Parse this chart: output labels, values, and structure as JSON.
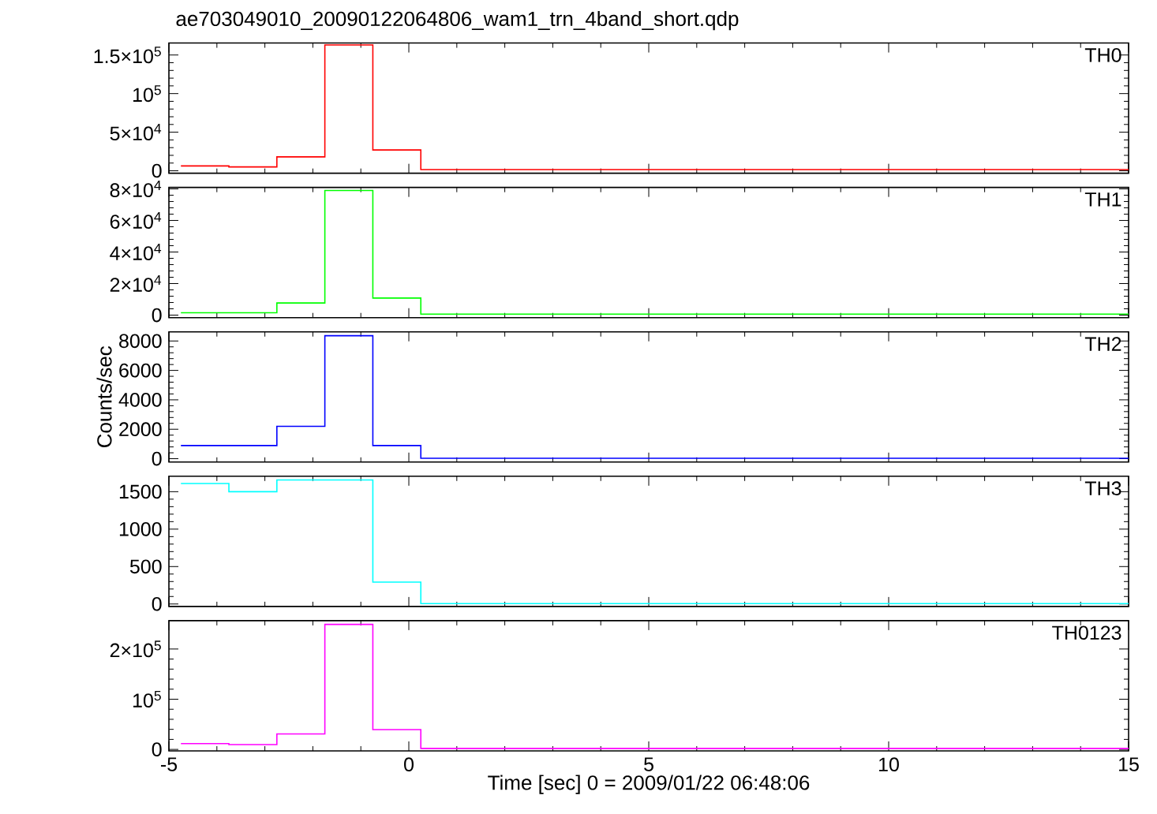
{
  "chart_data": [
    {
      "type": "histogram",
      "title": "ae703049010_20090122064806_wam1_trn_4band_short.qdp",
      "bins": [
        -4.75,
        -3.75,
        -2.75,
        -1.75,
        -0.75,
        0.25,
        1.25,
        2.25,
        3.25,
        4.25,
        5.25,
        6.25,
        7.25,
        8.25,
        9.25,
        10.25,
        11.25,
        12.25,
        13.25,
        14.25,
        15
      ],
      "xlim": [
        -5,
        15
      ],
      "xticks": [
        -5,
        0,
        5,
        10,
        15
      ],
      "ylim": [
        -3200,
        165500
      ],
      "yticks": [
        0,
        {
          "value": 50000,
          "label": "5×10$^{4}$"
        },
        {
          "value": 100000,
          "label": "10$^{5}$"
        },
        {
          "value": 150000,
          "label": "1.5×10$^{5}$"
        }
      ],
      "tick_labels": "y",
      "series": [
        {
          "name": "TH0",
          "color": "#ff0000",
          "values": [
            6300,
            5000,
            18000,
            163000,
            27000,
            1500,
            1500,
            1500,
            1500,
            1500,
            1500,
            1500,
            1500,
            1500,
            1500,
            1500,
            1500,
            1500,
            1500,
            1500
          ]
        }
      ]
    },
    {
      "type": "histogram",
      "bins": [
        -4.75,
        -3.75,
        -2.75,
        -1.75,
        -0.75,
        0.25,
        1.25,
        2.25,
        3.25,
        4.25,
        5.25,
        6.25,
        7.25,
        8.25,
        9.25,
        10.25,
        11.25,
        12.25,
        13.25,
        14.25,
        15
      ],
      "xlim": [
        -5,
        15
      ],
      "xticks": [
        -5,
        0,
        5,
        10,
        15
      ],
      "ylim": [
        -1600,
        80900
      ],
      "yticks": [
        0,
        {
          "value": 20000,
          "label": "2×10$^{4}$"
        },
        {
          "value": 40000,
          "label": "4×10$^{4}$"
        },
        {
          "value": 60000,
          "label": "6×10$^{4}$"
        },
        {
          "value": 80000,
          "label": "8×10$^{4}$"
        }
      ],
      "tick_labels": "y",
      "series": [
        {
          "name": "TH1",
          "color": "#00ff00",
          "values": [
            1500,
            1500,
            7700,
            79000,
            10800,
            600,
            600,
            600,
            600,
            600,
            600,
            600,
            600,
            600,
            600,
            600,
            600,
            600,
            600,
            600
          ]
        }
      ]
    },
    {
      "type": "histogram",
      "ylabel": "Counts/sec",
      "bins": [
        -4.75,
        -3.75,
        -2.75,
        -1.75,
        -0.75,
        0.25,
        1.25,
        2.25,
        3.25,
        4.25,
        5.25,
        6.25,
        7.25,
        8.25,
        9.25,
        10.25,
        11.25,
        12.25,
        13.25,
        14.25,
        15
      ],
      "xlim": [
        -5,
        15
      ],
      "xticks": [
        -5,
        0,
        5,
        10,
        15
      ],
      "ylim": [
        -230,
        8620
      ],
      "yticks": [
        0,
        2000,
        4000,
        6000,
        8000
      ],
      "tick_labels": "y",
      "series": [
        {
          "name": "TH2",
          "color": "#0000ff",
          "values": [
            890,
            890,
            2200,
            8360,
            890,
            30,
            30,
            30,
            30,
            30,
            30,
            30,
            30,
            30,
            30,
            30,
            30,
            30,
            30,
            30
          ]
        }
      ]
    },
    {
      "type": "histogram",
      "bins": [
        -4.75,
        -3.75,
        -2.75,
        -1.75,
        -0.75,
        0.25,
        1.25,
        2.25,
        3.25,
        4.25,
        5.25,
        6.25,
        7.25,
        8.25,
        9.25,
        10.25,
        11.25,
        12.25,
        13.25,
        14.25,
        15
      ],
      "xlim": [
        -5,
        15
      ],
      "xticks": [
        -5,
        0,
        5,
        10,
        15
      ],
      "ylim": [
        -33,
        1706
      ],
      "yticks": [
        0,
        500,
        1000,
        1500
      ],
      "tick_labels": "y",
      "series": [
        {
          "name": "TH3",
          "color": "#00ffff",
          "values": [
            1610,
            1500,
            1656,
            1656,
            292,
            6,
            6,
            6,
            6,
            6,
            6,
            6,
            6,
            6,
            6,
            6,
            6,
            6,
            6,
            6
          ]
        }
      ]
    },
    {
      "type": "histogram",
      "xlabel": "Time [sec] 0 = 2009/01/22 06:48:06",
      "bins": [
        -4.75,
        -3.75,
        -2.75,
        -1.75,
        -0.75,
        0.25,
        1.25,
        2.25,
        3.25,
        4.25,
        5.25,
        6.25,
        7.25,
        8.25,
        9.25,
        10.25,
        11.25,
        12.25,
        13.25,
        14.25,
        15
      ],
      "xlim": [
        -5,
        15
      ],
      "xticks": [
        -5,
        0,
        5,
        10,
        15
      ],
      "ylim": [
        -2900,
        256500
      ],
      "yticks": [
        0,
        {
          "value": 100000,
          "label": "10$^{5}$"
        },
        {
          "value": 200000,
          "label": "2×10$^{5}$"
        }
      ],
      "series": [
        {
          "name": "TH0123",
          "color": "#ff00ff",
          "values": [
            11500,
            9600,
            30800,
            249000,
            39400,
            2000,
            2000,
            2000,
            2000,
            2000,
            2000,
            2000,
            2000,
            2000,
            2000,
            2000,
            2000,
            2000,
            2000,
            2000
          ]
        }
      ]
    }
  ]
}
